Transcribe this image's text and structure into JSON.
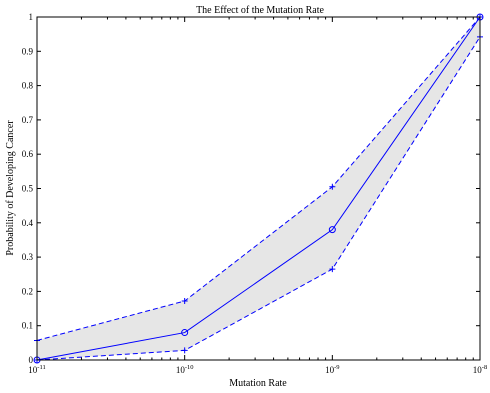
{
  "chart_data": {
    "type": "line",
    "title": "The Effect of the Mutation Rate",
    "xlabel": "Mutation Rate",
    "ylabel": "Probability of Developing Cancer",
    "x_scale": "log",
    "xlim": [
      1e-11,
      1e-08
    ],
    "ylim": [
      0,
      1
    ],
    "x": [
      1e-11,
      1e-10,
      1e-09,
      1e-08
    ],
    "x_tick_labels": [
      {
        "base": "10",
        "exp": "-11"
      },
      {
        "base": "10",
        "exp": "-10"
      },
      {
        "base": "10",
        "exp": "-9"
      },
      {
        "base": "10",
        "exp": "-8"
      }
    ],
    "y_ticks": [
      "0",
      "0.1",
      "0.2",
      "0.3",
      "0.4",
      "0.5",
      "0.6",
      "0.7",
      "0.8",
      "0.9",
      "1"
    ],
    "series": [
      {
        "values": [
          0.0,
          0.08,
          0.38,
          1.0
        ],
        "style": "solid",
        "marker": "circle",
        "color": "#0000ff"
      },
      {
        "values": [
          0.057,
          0.172,
          0.505,
          1.0
        ],
        "style": "dashed",
        "marker": "plus",
        "color": "#0000ff"
      },
      {
        "values": [
          0.0,
          0.028,
          0.265,
          0.942
        ],
        "style": "dashed",
        "marker": "plus",
        "color": "#0000ff"
      }
    ],
    "band_fill": "#e6e6e6",
    "grid": false
  }
}
